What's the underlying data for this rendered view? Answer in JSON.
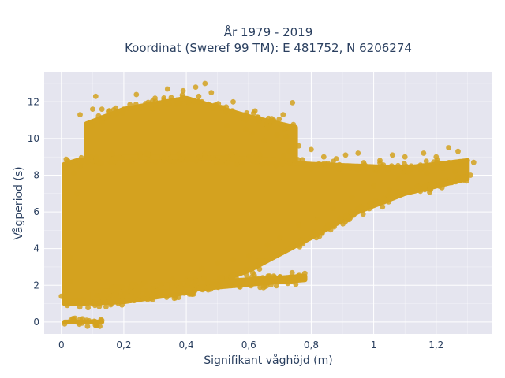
{
  "chart_data": {
    "type": "scatter",
    "title_lines": [
      "År 1979 - 2019",
      "Koordinat (Sweref 99 TM): E 481752, N 6206274"
    ],
    "xlabel": "Signifikant våghöjd (m)",
    "ylabel": "Vågperiod (s)",
    "xlim": [
      -0.055,
      1.38
    ],
    "ylim": [
      -0.65,
      13.6
    ],
    "x_ticks": [
      0,
      0.2,
      0.4,
      0.6,
      0.8,
      1.0,
      1.2
    ],
    "x_tick_labels": [
      "0",
      "0,2",
      "0,4",
      "0,6",
      "0,8",
      "1",
      "1,2"
    ],
    "y_ticks": [
      0,
      2,
      4,
      6,
      8,
      10,
      12
    ],
    "y_tick_labels": [
      "0",
      "2",
      "4",
      "6",
      "8",
      "10",
      "12"
    ],
    "grid": true,
    "legend": "none",
    "colors": {
      "marker": "#d4a21f",
      "plot_background": "#e5e5ef",
      "grid": "#ffffff",
      "text": "#2a3f5f"
    },
    "series": [
      {
        "marker": "circle",
        "regions": [
          {
            "shape": "band",
            "x": [
              0.01,
              0.13
            ],
            "y_lower": [
              0,
              0
            ],
            "y_upper": [
              0,
              0
            ]
          },
          {
            "shape": "band",
            "x": [
              0.01,
              0.05,
              0.2,
              0.4,
              0.6,
              0.8,
              0.95,
              1.1,
              1.3
            ],
            "y_lower": [
              1.0,
              1.0,
              1.1,
              1.6,
              2.8,
              4.6,
              6.0,
              7.0,
              7.8
            ],
            "y_upper": [
              8.6,
              8.8,
              8.9,
              9.0,
              8.8,
              8.6,
              8.5,
              8.4,
              8.8
            ]
          },
          {
            "shape": "band",
            "x": [
              0.1,
              0.3,
              0.5,
              0.7,
              0.78
            ],
            "y_lower": [
              1.2,
              1.6,
              1.9,
              2.2,
              2.3
            ],
            "y_upper": [
              1.6,
              2.0,
              2.2,
              2.4,
              2.5
            ]
          },
          {
            "shape": "band",
            "x": [
              0.08,
              0.2,
              0.4,
              0.6,
              0.75
            ],
            "y_lower": [
              8.8,
              9.0,
              9.0,
              8.9,
              8.8
            ],
            "y_upper": [
              10.8,
              11.6,
              12.2,
              11.2,
              10.6
            ]
          }
        ],
        "points": [
          [
            0.46,
            13.0
          ],
          [
            0.43,
            12.8
          ],
          [
            0.34,
            12.7
          ],
          [
            0.39,
            12.6
          ],
          [
            0.48,
            12.5
          ],
          [
            0.24,
            12.4
          ],
          [
            0.44,
            12.3
          ],
          [
            0.11,
            12.3
          ],
          [
            0.55,
            12.0
          ],
          [
            0.74,
            11.95
          ],
          [
            0.13,
            11.6
          ],
          [
            0.1,
            11.6
          ],
          [
            0.33,
            11.9
          ],
          [
            0.71,
            11.3
          ],
          [
            0.2,
            11.6
          ],
          [
            0.06,
            11.3
          ],
          [
            0.3,
            12.2
          ],
          [
            0.51,
            11.7
          ],
          [
            0.45,
            12.0
          ],
          [
            0.62,
            11.5
          ],
          [
            0.37,
            12.1
          ],
          [
            0.27,
            11.7
          ],
          [
            0.68,
            11.0
          ],
          [
            0.49,
            11.8
          ],
          [
            0.57,
            11.2
          ],
          [
            0.77,
            2.5
          ],
          [
            0.7,
            2.45
          ],
          [
            0.68,
            2.5
          ],
          [
            0.61,
            2.45
          ],
          [
            0.56,
            2.4
          ],
          [
            0.01,
            8.1
          ],
          [
            0.04,
            8.1
          ],
          [
            0.03,
            3.5
          ],
          [
            0.02,
            2.7
          ],
          [
            0.03,
            2.2
          ],
          [
            0.02,
            1.6
          ],
          [
            0.0,
            1.4
          ],
          [
            0.01,
            1.2
          ],
          [
            0.05,
            7.0
          ],
          [
            0.06,
            8.5
          ],
          [
            0.8,
            9.4
          ],
          [
            0.84,
            9.0
          ],
          [
            0.91,
            9.1
          ],
          [
            0.95,
            9.2
          ],
          [
            0.88,
            8.9
          ],
          [
            1.02,
            8.8
          ],
          [
            1.06,
            9.1
          ],
          [
            1.1,
            9.0
          ],
          [
            1.16,
            9.2
          ],
          [
            1.2,
            9.0
          ],
          [
            1.24,
            9.5
          ],
          [
            1.27,
            9.3
          ],
          [
            1.3,
            8.8
          ],
          [
            1.32,
            8.7
          ],
          [
            1.29,
            8.5
          ],
          [
            1.26,
            8.2
          ],
          [
            1.23,
            7.7
          ],
          [
            1.25,
            7.6
          ],
          [
            1.21,
            7.5
          ],
          [
            1.18,
            7.3
          ],
          [
            1.14,
            7.4
          ],
          [
            1.27,
            7.9
          ],
          [
            1.31,
            8.0
          ],
          [
            1.28,
            8.6
          ],
          [
            1.22,
            8.4
          ],
          [
            1.17,
            8.1
          ],
          [
            1.12,
            8.5
          ],
          [
            1.08,
            7.8
          ],
          [
            1.05,
            7.2
          ],
          [
            1.0,
            7.4
          ],
          [
            0.93,
            6.8
          ],
          [
            0.87,
            6.2
          ],
          [
            0.82,
            5.6
          ],
          [
            0.76,
            5.3
          ],
          [
            0.7,
            4.6
          ],
          [
            0.66,
            4.2
          ],
          [
            0.6,
            3.6
          ],
          [
            0.55,
            3.4
          ],
          [
            0.5,
            3.2
          ],
          [
            0.45,
            2.9
          ],
          [
            0.73,
            9.3
          ],
          [
            0.76,
            9.6
          ],
          [
            0.65,
            9.9
          ],
          [
            0.69,
            10.2
          ],
          [
            0.59,
            10.5
          ],
          [
            0.61,
            10.3
          ],
          [
            0.53,
            10.7
          ],
          [
            0.58,
            11.1
          ],
          [
            0.66,
            10.6
          ],
          [
            0.72,
            10.1
          ]
        ]
      }
    ]
  }
}
